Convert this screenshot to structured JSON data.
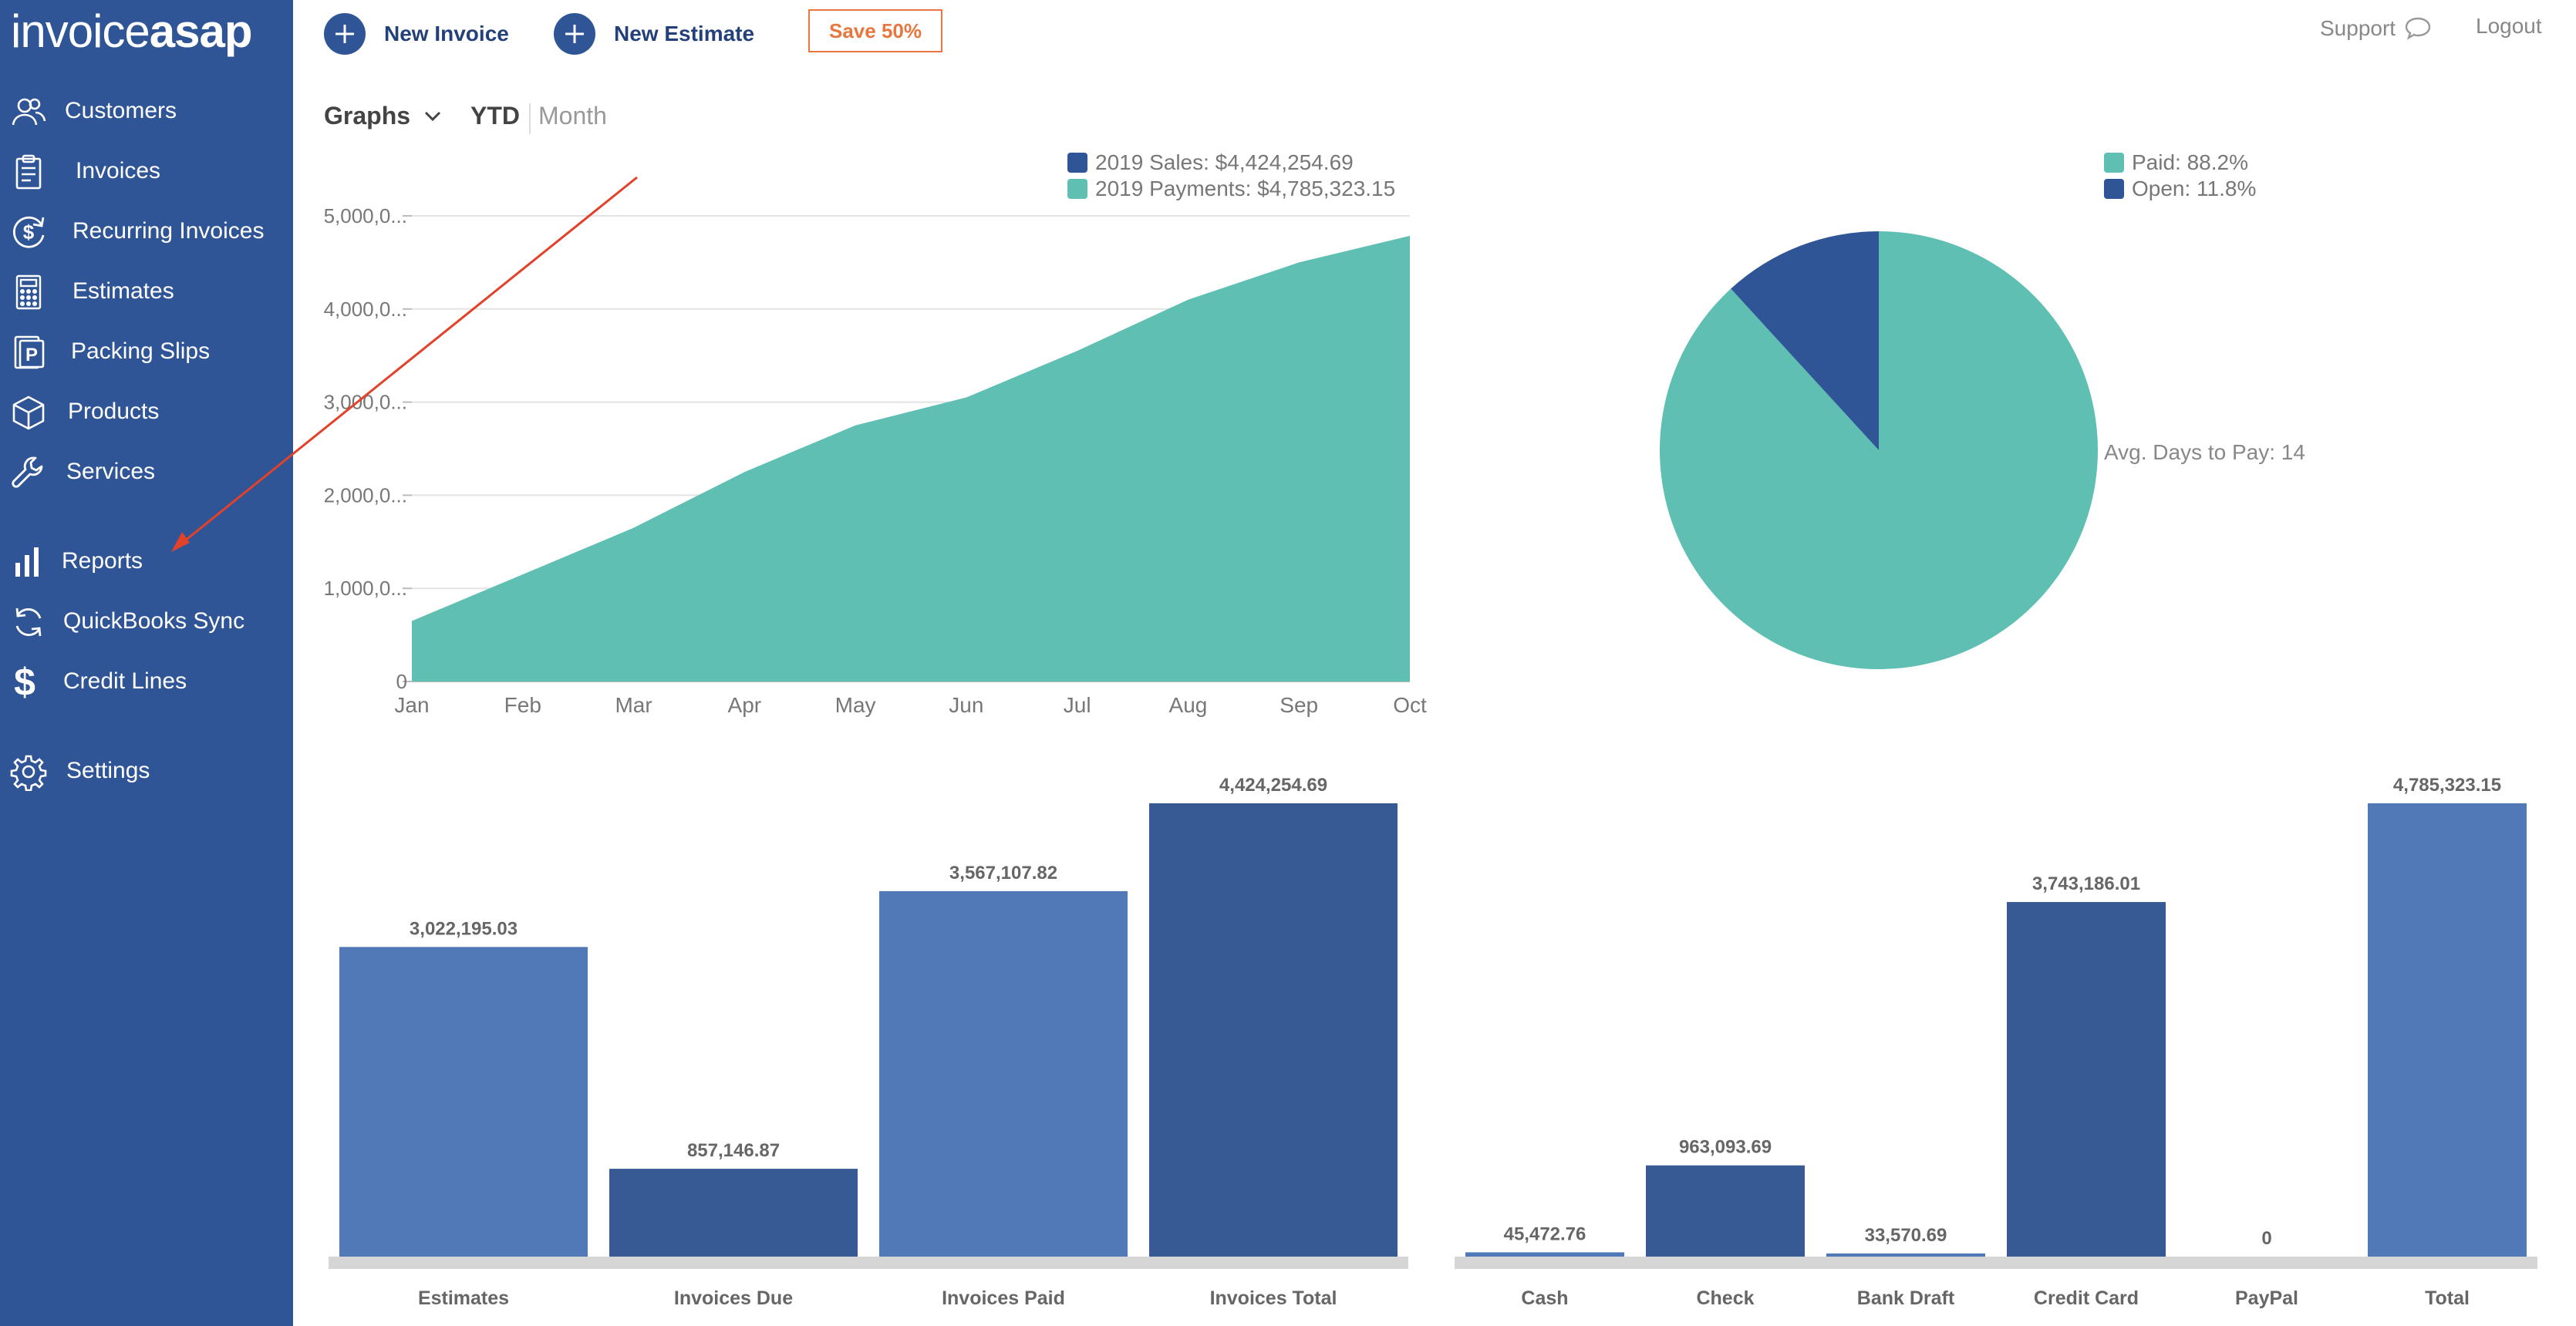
{
  "brand": {
    "logo_light": "invoice",
    "logo_bold": "asap"
  },
  "sidebar": {
    "items": [
      {
        "label": "Customers",
        "icon": "users-icon"
      },
      {
        "label": "Invoices",
        "icon": "clipboard-icon"
      },
      {
        "label": "Recurring Invoices",
        "icon": "recurring-dollar-icon"
      },
      {
        "label": "Estimates",
        "icon": "calculator-icon"
      },
      {
        "label": "Packing Slips",
        "icon": "packing-slip-icon"
      },
      {
        "label": "Products",
        "icon": "box-icon"
      },
      {
        "label": "Services",
        "icon": "wrench-icon"
      },
      {
        "label": "Reports",
        "icon": "bar-chart-icon"
      },
      {
        "label": "QuickBooks Sync",
        "icon": "sync-icon"
      },
      {
        "label": "Credit Lines",
        "icon": "dollar-icon"
      },
      {
        "label": "Settings",
        "icon": "gear-icon"
      }
    ]
  },
  "topbar": {
    "new_invoice": "New Invoice",
    "new_estimate": "New Estimate",
    "save": "Save 50%",
    "support": "Support",
    "logout": "Logout"
  },
  "graphs_header": {
    "graphs": "Graphs",
    "ytd": "YTD",
    "month": "Month"
  },
  "colors": {
    "sidebar": "#2f5596",
    "teal": "#5fbfb3",
    "navy": "#2f5596",
    "bar_light": "#5178b7",
    "bar_dark": "#375a94",
    "accent": "#e8773f"
  },
  "chart_data": [
    {
      "type": "area",
      "title": "",
      "legend": [
        "2019 Sales: $4,424,254.69",
        "2019 Payments: $4,785,323.15"
      ],
      "categories": [
        "Jan",
        "Feb",
        "Mar",
        "Apr",
        "May",
        "Jun",
        "Jul",
        "Aug",
        "Sep",
        "Oct"
      ],
      "series": [
        {
          "name": "2019 Payments",
          "values": [
            650000,
            1150000,
            1650000,
            2250000,
            2750000,
            3050000,
            3550000,
            4100000,
            4500000,
            4785323.15
          ]
        }
      ],
      "y_ticks": [
        "0",
        "1,000,0...",
        "2,000,0...",
        "3,000,0...",
        "4,000,0...",
        "5,000,0..."
      ],
      "ylim": [
        0,
        5000000
      ],
      "grid": true
    },
    {
      "type": "pie",
      "legend": [
        "Paid: 88.2%",
        "Open: 11.8%"
      ],
      "slices": [
        {
          "name": "Paid",
          "value": 88.2
        },
        {
          "name": "Open",
          "value": 11.8
        }
      ],
      "annotation": "Avg. Days to Pay: 14"
    },
    {
      "type": "bar",
      "categories": [
        "Estimates",
        "Invoices Due",
        "Invoices Paid",
        "Invoices Total"
      ],
      "values": [
        3022195.03,
        857146.87,
        3567107.82,
        4424254.69
      ],
      "value_labels": [
        "3,022,195.03",
        "857,146.87",
        "3,567,107.82",
        "4,424,254.69"
      ],
      "ylim": [
        0,
        4424254.69
      ]
    },
    {
      "type": "bar",
      "categories": [
        "Cash",
        "Check",
        "Bank Draft",
        "Credit Card",
        "PayPal",
        "Total"
      ],
      "values": [
        45472.76,
        963093.69,
        33570.69,
        3743186.01,
        0,
        4785323.15
      ],
      "value_labels": [
        "45,472.76",
        "963,093.69",
        "33,570.69",
        "3,743,186.01",
        "0",
        "4,785,323.15"
      ],
      "ylim": [
        0,
        4785323.15
      ]
    }
  ]
}
